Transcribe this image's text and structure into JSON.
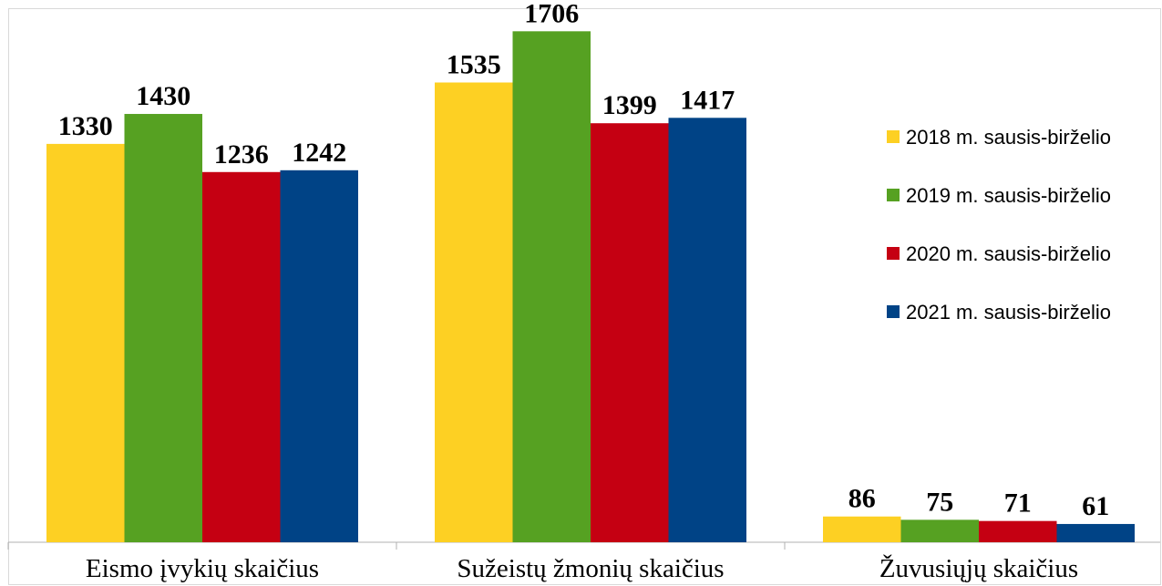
{
  "chart_data": {
    "type": "bar",
    "categories": [
      "Eismo įvykių skaičius",
      "Sužeistų žmonių skaičius",
      "Žuvusiųjų skaičius"
    ],
    "series": [
      {
        "name": "2018 m. sausis-birželio",
        "color": "#FDD023",
        "values": [
          1330,
          1535,
          86
        ]
      },
      {
        "name": "2019 m. sausis-birželio",
        "color": "#56A122",
        "values": [
          1430,
          1706,
          75
        ]
      },
      {
        "name": "2020 m. sausis-birželio",
        "color": "#C50012",
        "values": [
          1236,
          1399,
          71
        ]
      },
      {
        "name": "2021 m. sausis-birželio",
        "color": "#004386",
        "values": [
          1242,
          1417,
          61
        ]
      }
    ],
    "ylim": [
      0,
      1780
    ],
    "legend_position": "right",
    "grid": false,
    "data_labels": true
  }
}
